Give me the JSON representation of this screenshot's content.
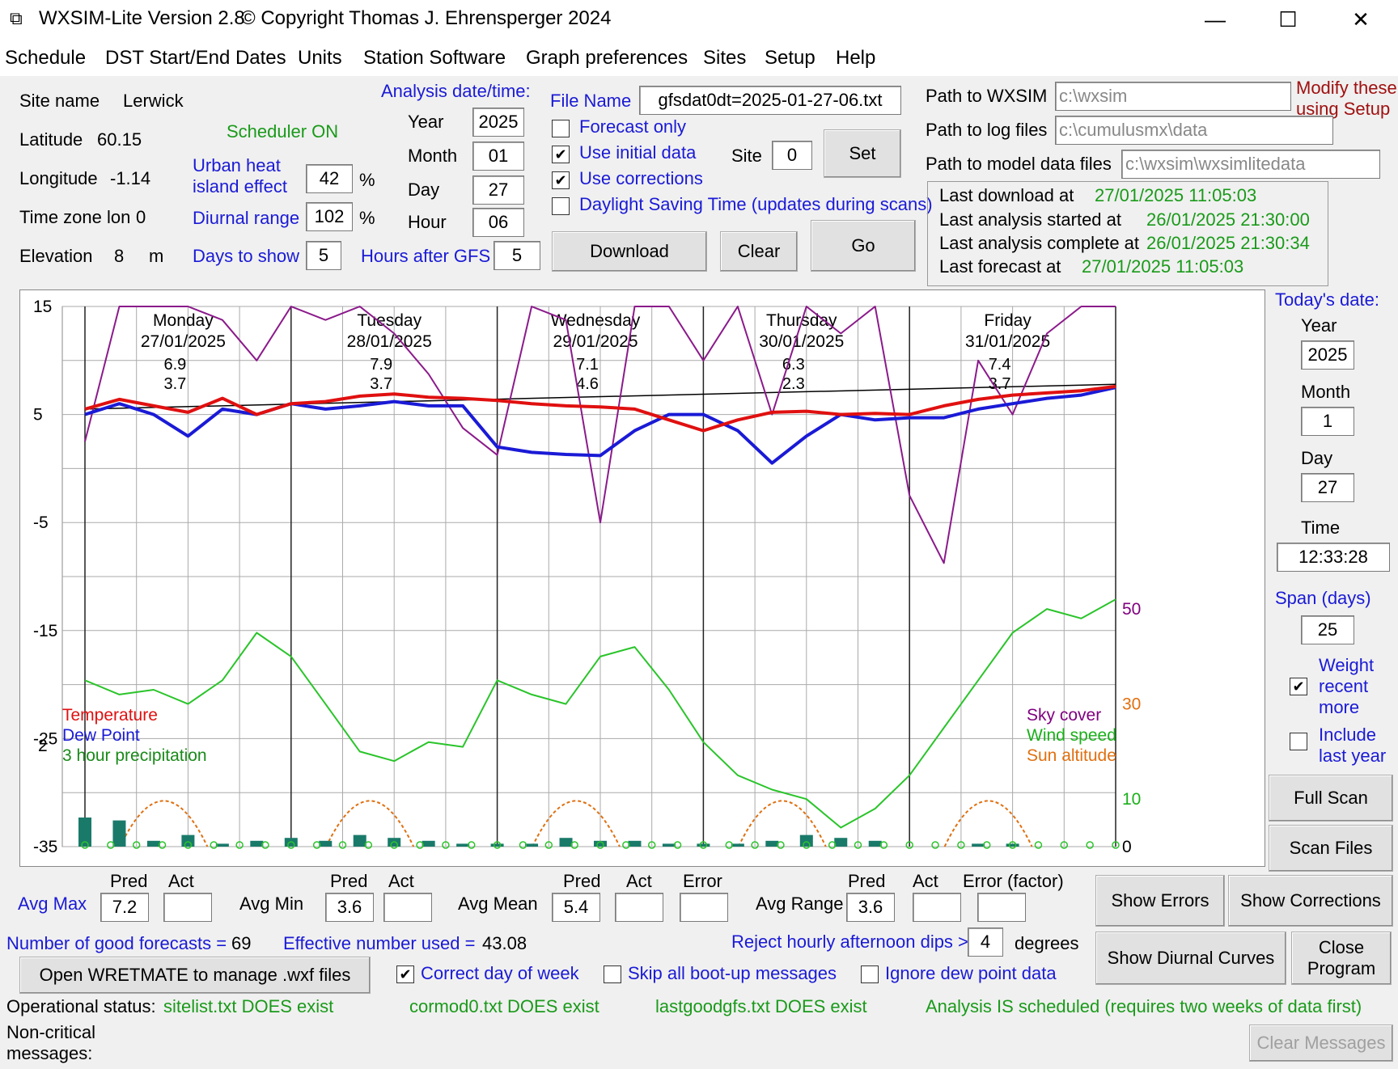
{
  "window": {
    "title": "WXSIM-Lite Version 2.8",
    "copyright": "© Copyright Thomas J. Ehrensperger 2024",
    "minimize": "—",
    "maximize": "☐",
    "close": "✕"
  },
  "menu": [
    "Schedule",
    "DST Start/End Dates",
    "Units",
    "Station Software",
    "Graph preferences",
    "Sites",
    "Setup",
    "Help"
  ],
  "site": {
    "name_label": "Site name",
    "name": "Lerwick",
    "lat_label": "Latitude",
    "lat": "60.15",
    "lon_label": "Longitude",
    "lon": "-1.14",
    "tz_label": "Time zone lon",
    "tz": "0",
    "elev_label": "Elevation",
    "elev": "8",
    "elev_unit": "m"
  },
  "scheduler": "Scheduler ON",
  "urban": {
    "label1": "Urban heat",
    "label2": "island effect",
    "value": "42",
    "unit": "%"
  },
  "diurnal": {
    "label": "Diurnal range",
    "value": "102",
    "unit": "%"
  },
  "days": {
    "label": "Days to show",
    "value": "5"
  },
  "analysis": {
    "heading": "Analysis date/time:",
    "year_label": "Year",
    "year": "2025",
    "month_label": "Month",
    "month": "01",
    "day_label": "Day",
    "day": "27",
    "hour_label": "Hour",
    "hour": "06",
    "hours_after_label": "Hours after GFS",
    "hours_after": "5"
  },
  "file": {
    "label": "File Name",
    "value": "gfsdat0dt=2025-01-27-06.txt",
    "forecast_only": "Forecast only",
    "use_initial": "Use initial data",
    "use_corrections": "Use corrections",
    "dst": "Daylight Saving Time (updates during scans)",
    "site_label": "Site",
    "site_value": "0",
    "set": "Set",
    "download": "Download",
    "clear": "Clear",
    "go": "Go"
  },
  "paths": {
    "wxsim_label": "Path to WXSIM",
    "wxsim": "c:\\wxsim",
    "log_label": "Path to log files",
    "log": "c:\\cumulusmx\\data",
    "model_label": "Path to model data files",
    "model": "c:\\wxsim\\wxsimlitedata",
    "note1": "Modify these",
    "note2": "using Setup"
  },
  "status_box": {
    "dl_label": "Last download at",
    "dl": "27/01/2025 11:05:03",
    "start_label": "Last analysis started at",
    "start": "26/01/2025 21:30:00",
    "complete_label": "Last analysis complete at",
    "complete": "26/01/2025 21:30:34",
    "fc_label": "Last forecast at",
    "fc": "27/01/2025 11:05:03"
  },
  "today": {
    "heading": "Today's date:",
    "year_label": "Year",
    "year": "2025",
    "month_label": "Month",
    "month": "1",
    "day_label": "Day",
    "day": "27",
    "time_label": "Time",
    "time": "12:33:28",
    "span_label": "Span (days)",
    "span": "25",
    "weight": [
      "Weight",
      "recent",
      "more"
    ],
    "include": [
      "Include",
      "last year"
    ],
    "full_scan": "Full Scan",
    "scan_files": "Scan Files"
  },
  "chart_data": {
    "type": "line",
    "yticks": [
      "15",
      "5",
      "-5",
      "-15",
      "-25",
      "-35"
    ],
    "ytick_values": [
      15,
      5,
      -5,
      -15,
      -25,
      -35
    ],
    "ylim": [
      -35,
      15
    ],
    "right_ticks": [
      {
        "label": "50",
        "value": 50,
        "color": "#800080"
      },
      {
        "label": "30",
        "value": 30,
        "color": "#e07010"
      },
      {
        "label": "10",
        "value": 10,
        "color": "#1ab01a"
      },
      {
        "label": "0",
        "value": 0,
        "color": "#000000"
      }
    ],
    "precip_label": "2",
    "days": [
      {
        "name": "Monday",
        "date": "27/01/2025",
        "max": "6.9",
        "min": "3.7"
      },
      {
        "name": "Tuesday",
        "date": "28/01/2025",
        "max": "7.9",
        "min": "3.7"
      },
      {
        "name": "Wednesday",
        "date": "29/01/2025",
        "max": "7.1",
        "min": "4.6"
      },
      {
        "name": "Thursday",
        "date": "30/01/2025",
        "max": "6.3",
        "min": "2.3"
      },
      {
        "name": "Friday",
        "date": "31/01/2025",
        "max": "7.4",
        "min": "3.7"
      }
    ],
    "legend_left": [
      {
        "label": "Temperature",
        "color": "#e01010"
      },
      {
        "label": "Dew Point",
        "color": "#1a1ad6"
      },
      {
        "label": "3 hour precipitation",
        "color": "#1a8a1a"
      }
    ],
    "legend_right": [
      {
        "label": "Sky cover",
        "color": "#800080"
      },
      {
        "label": "Wind speed",
        "color": "#1ab01a"
      },
      {
        "label": "Sun altitude",
        "color": "#e07010"
      }
    ],
    "x_hours": [
      0,
      6,
      12,
      18,
      24,
      30,
      36,
      42,
      48,
      54,
      60,
      66,
      72,
      78,
      84,
      90,
      96,
      102,
      108,
      114,
      120
    ],
    "temperature": [
      5.5,
      6.4,
      5.8,
      5.2,
      6.5,
      5.0,
      6.0,
      6.2,
      6.7,
      6.9,
      6.6,
      6.5,
      6.3,
      6.0,
      5.8,
      5.7,
      5.5,
      4.5,
      3.5,
      4.5,
      5.2,
      5.3,
      5.0,
      5.1,
      5.0,
      5.8,
      6.4,
      6.8,
      7.0,
      7.2,
      7.6
    ],
    "dewpoint": [
      5.0,
      6.0,
      5.0,
      3.0,
      5.5,
      5.0,
      6.0,
      5.5,
      5.8,
      6.2,
      5.8,
      5.8,
      2.0,
      1.5,
      1.3,
      1.2,
      3.5,
      5.0,
      5.0,
      3.5,
      0.5,
      3.0,
      5.0,
      4.5,
      4.7,
      4.7,
      5.5,
      6.0,
      6.5,
      6.8,
      7.5
    ],
    "sky_cover_pct": [
      50,
      100,
      100,
      100,
      95,
      80,
      100,
      95,
      100,
      90,
      75,
      55,
      45,
      100,
      95,
      20,
      100,
      100,
      80,
      100,
      60,
      100,
      90,
      100,
      30,
      5,
      80,
      60,
      90,
      100,
      100
    ],
    "wind_speed": [
      35,
      32,
      33,
      30,
      35,
      45,
      40,
      30,
      20,
      18,
      22,
      21,
      35,
      32,
      30,
      40,
      42,
      33,
      22,
      15,
      12,
      10,
      4,
      8,
      15,
      25,
      35,
      45,
      50,
      48,
      52
    ],
    "sun_altitude_peak": 7,
    "precip_mm": [
      1.0,
      0.9,
      0.2,
      0.4,
      0.1,
      0.2,
      0.3,
      0.2,
      0.4,
      0.3,
      0.2,
      0.1,
      0.1,
      0.1,
      0.3,
      0.2,
      0.2,
      0.1,
      0.1,
      0.1,
      0.2,
      0.4,
      0.3,
      0.2,
      0.0,
      0.0,
      0.1,
      0.1,
      0.0,
      0.0,
      0.0
    ]
  },
  "stats": {
    "pred": "Pred",
    "act": "Act",
    "error": "Error",
    "error_factor": "Error (factor)",
    "avg_max_label": "Avg Max",
    "avg_max": "7.2",
    "avg_min_label": "Avg Min",
    "avg_min": "3.6",
    "avg_mean_label": "Avg Mean",
    "avg_mean": "5.4",
    "avg_range_label": "Avg Range",
    "avg_range": "3.6"
  },
  "bottom": {
    "good_label": "Number of good forecasts =",
    "good": "69",
    "eff_label": "Effective number used =",
    "eff": "43.08",
    "reject_label": "Reject hourly afternoon dips >",
    "reject": "4",
    "degrees": "degrees",
    "open_wretmate": "Open WRETMATE to manage .wxf files",
    "correct_dow": "Correct day of week",
    "skip_boot": "Skip all boot-up messages",
    "ignore_dew": "Ignore dew point data",
    "show_errors": "Show Errors",
    "show_corrections": "Show Corrections",
    "show_diurnal": "Show Diurnal Curves",
    "close1": "Close",
    "close2": "Program",
    "op_label": "Operational status:",
    "s1": "sitelist.txt DOES exist",
    "s2": "cormod0.txt DOES exist",
    "s3": "lastgoodgfs.txt DOES exist",
    "s4": "Analysis IS scheduled (requires two weeks of data first)",
    "noncrit1": "Non-critical",
    "noncrit2": "messages:",
    "clear_messages": "Clear Messages"
  }
}
